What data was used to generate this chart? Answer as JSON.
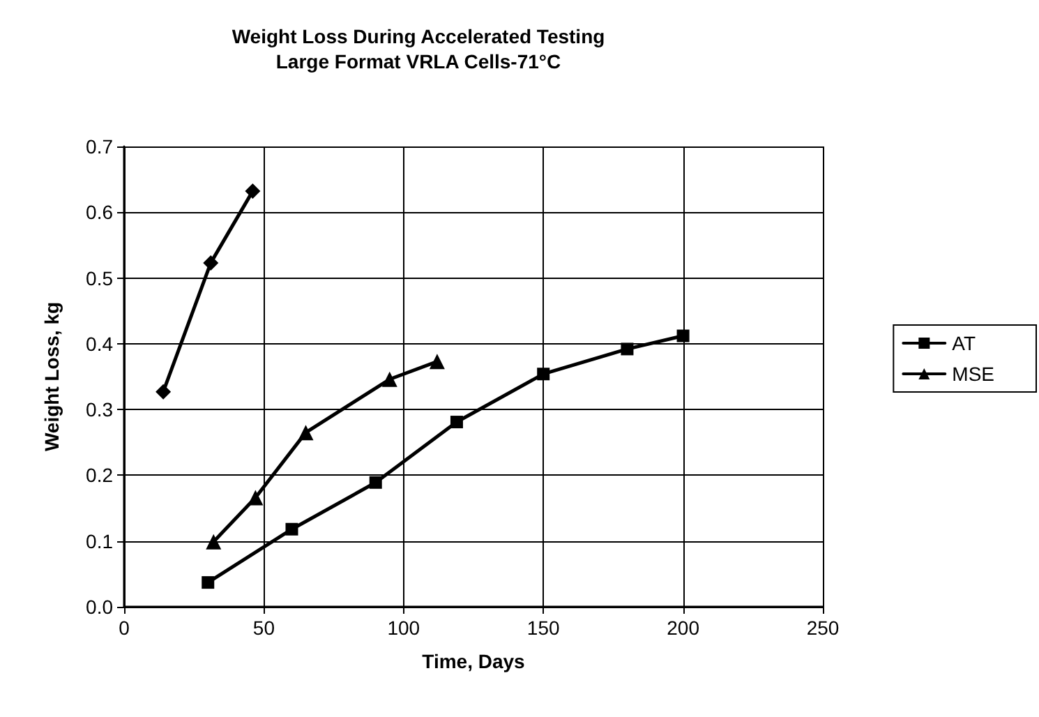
{
  "chart_data": {
    "type": "line",
    "title": "Weight Loss During Accelerated Testing\nLarge Format VRLA Cells-71°C",
    "xlabel": "Time, Days",
    "ylabel": "Weight Loss, kg",
    "xlim": [
      0,
      250
    ],
    "xticks": [
      0,
      50,
      100,
      150,
      200,
      250
    ],
    "ylim": [
      0,
      0.7
    ],
    "yticks": [
      {
        "value": 0,
        "label": "0.0"
      },
      0.1,
      0.2,
      0.3,
      0.4,
      0.5,
      0.6,
      0.7
    ],
    "grid": true,
    "legend": "right",
    "line_style": "solid",
    "series": [
      {
        "color": "#000000",
        "marker": "diamond",
        "x": [
          14,
          31,
          46
        ],
        "values": [
          0.327,
          0.523,
          0.632
        ]
      },
      {
        "name": "AT",
        "color": "#000000",
        "marker": "square",
        "x": [
          30,
          60,
          90,
          119,
          150,
          180,
          200
        ],
        "values": [
          0.037,
          0.118,
          0.189,
          0.281,
          0.354,
          0.392,
          0.412
        ]
      },
      {
        "name": "MSE",
        "color": "#000000",
        "marker": "triangle",
        "x": [
          32,
          47,
          65,
          95,
          112
        ],
        "values": [
          0.099,
          0.166,
          0.265,
          0.346,
          0.373
        ]
      }
    ]
  }
}
